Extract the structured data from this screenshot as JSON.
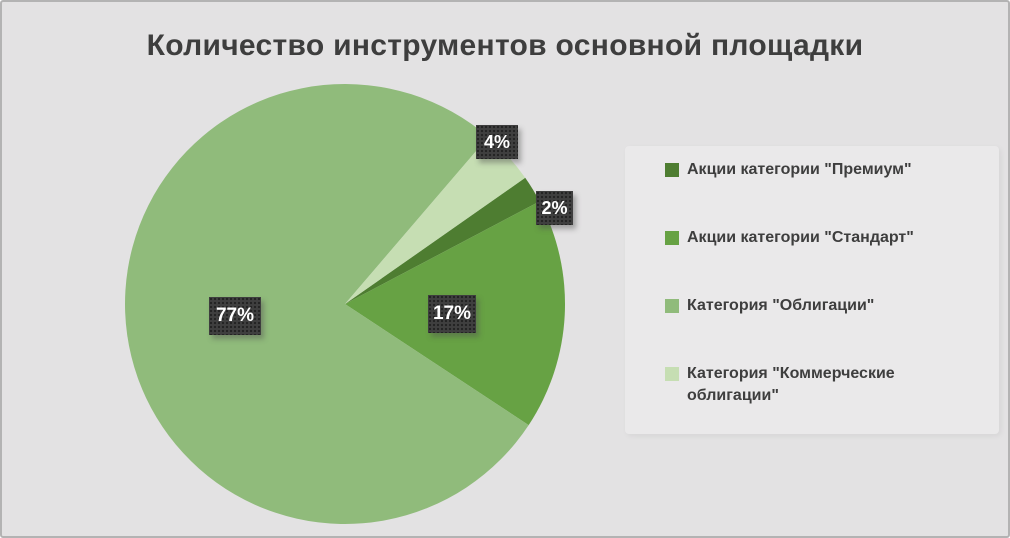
{
  "window": {
    "background_color": "#e3e2e3",
    "border_color": "#b3b3b3",
    "legend_panel_color": "#eae9ea",
    "text_color": "#3e3e3e"
  },
  "chart_data": {
    "type": "pie",
    "title": "Количество инструментов основной площадки",
    "legend_position": "right",
    "direction": "clockwise",
    "start_angle_deg": 55,
    "slices": [
      {
        "label": "Акции категории \"Премиум\"",
        "value": 2,
        "pct_label": "2%",
        "color": "#4e7d31"
      },
      {
        "label": "Акции категории \"Стандарт\"",
        "value": 17,
        "pct_label": "17%",
        "color": "#67a244"
      },
      {
        "label": "Категория \"Облигации\"",
        "value": 77,
        "pct_label": "77%",
        "color": "#90bb7b"
      },
      {
        "label": "Категория \"Коммерческие облигации\"",
        "value": 4,
        "pct_label": "4%",
        "color": "#c6deb3"
      }
    ],
    "data_label_style": {
      "background": "#3f3f3f",
      "text_color": "#ffffff"
    }
  }
}
